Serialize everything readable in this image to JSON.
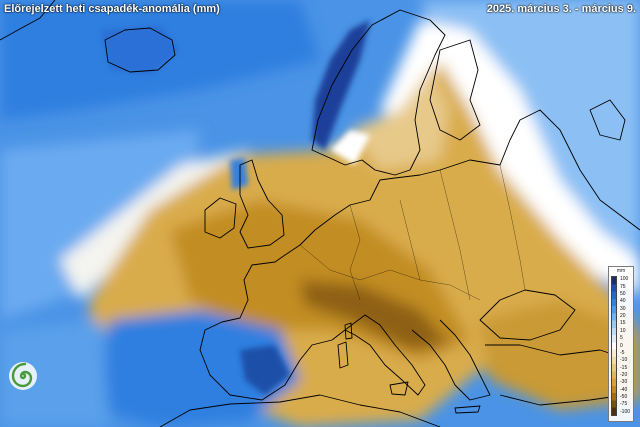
{
  "header": {
    "title": "Előrejelzett heti csapadék-anomália (mm)",
    "period": "2025. március 3. - március 9."
  },
  "legend": {
    "unit": "mm",
    "ticks": [
      "100",
      "75",
      "50",
      "40",
      "30",
      "20",
      "15",
      "10",
      "5",
      "0",
      "-5",
      "-10",
      "-15",
      "-20",
      "-30",
      "-40",
      "-50",
      "-75",
      "-100"
    ],
    "colors": [
      "#1d2f6b",
      "#1f4fa8",
      "#2767c9",
      "#3480de",
      "#4f98ea",
      "#73b2f2",
      "#98c9f7",
      "#bcdcf9",
      "#dcecfb",
      "#ffffff",
      "#f7ecd0",
      "#f0dcaa",
      "#e8c984",
      "#dfb55e",
      "#d4a13a",
      "#c08a1f",
      "#9f6e12",
      "#7a5010",
      "#50300a"
    ]
  },
  "colors": {
    "wet": "#2f7fe0",
    "dry": "#c9971f",
    "neutral": "#ffffff",
    "outline": "#000000"
  },
  "logo": {
    "icon": "spiral-logo-icon",
    "color": "#4a9a3a"
  }
}
